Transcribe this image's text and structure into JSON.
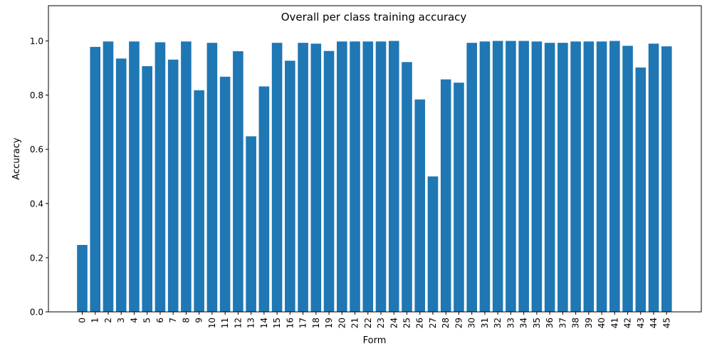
{
  "chart_data": {
    "type": "bar",
    "title": "Overall per class training accuracy",
    "xlabel": "Form",
    "ylabel": "Accuracy",
    "ylim": [
      0,
      1.05
    ],
    "yticks": [
      "0.0",
      "0.2",
      "0.4",
      "0.6",
      "0.8",
      "1.0"
    ],
    "categories": [
      "0",
      "1",
      "2",
      "3",
      "4",
      "5",
      "6",
      "7",
      "8",
      "9",
      "10",
      "11",
      "12",
      "13",
      "14",
      "15",
      "16",
      "17",
      "18",
      "19",
      "20",
      "21",
      "22",
      "23",
      "24",
      "25",
      "26",
      "27",
      "28",
      "29",
      "30",
      "31",
      "32",
      "33",
      "34",
      "35",
      "36",
      "37",
      "38",
      "39",
      "40",
      "41",
      "42",
      "43",
      "44",
      "45"
    ],
    "values": [
      0.247,
      0.978,
      0.998,
      0.935,
      0.998,
      0.907,
      0.995,
      0.931,
      0.998,
      0.818,
      0.993,
      0.868,
      0.962,
      0.648,
      0.832,
      0.993,
      0.927,
      0.993,
      0.99,
      0.963,
      0.998,
      0.998,
      0.998,
      0.998,
      1.0,
      0.922,
      0.784,
      0.5,
      0.858,
      0.846,
      0.993,
      0.998,
      1.0,
      1.0,
      1.0,
      0.998,
      0.993,
      0.993,
      0.998,
      0.998,
      0.998,
      1.0,
      0.982,
      0.902,
      0.99,
      0.98
    ],
    "bar_color": "#1f77b4",
    "grid": false,
    "legend": false
  }
}
